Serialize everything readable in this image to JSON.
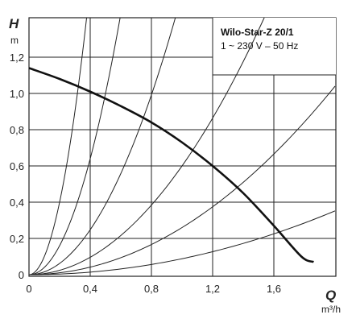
{
  "chart_data": {
    "type": "line",
    "title": "Wilo-Star-Z 20/1",
    "subtitle": "1 ~ 230 V – 50 Hz",
    "ylabel_symbol": "H",
    "ylabel_unit": "m",
    "xlabel_symbol": "Q",
    "xlabel_unit": "m³/h",
    "xlim": [
      0,
      2.0
    ],
    "ylim": [
      0,
      1.38
    ],
    "xticks": [
      "0",
      "0,4",
      "0,8",
      "1,2",
      "1,6"
    ],
    "xtick_values": [
      0,
      0.4,
      0.8,
      1.2,
      1.6
    ],
    "yticks": [
      "0",
      "0,2",
      "0,4",
      "0,6",
      "0,8",
      "1,0",
      "1,2"
    ],
    "ytick_values": [
      0,
      0.2,
      0.4,
      0.6,
      0.8,
      1.0,
      1.2
    ],
    "grid": true,
    "series": [
      {
        "role": "pump-curve",
        "points": [
          [
            0,
            1.14
          ],
          [
            0.2,
            1.08
          ],
          [
            0.4,
            1.01
          ],
          [
            0.6,
            0.93
          ],
          [
            0.8,
            0.84
          ],
          [
            1.0,
            0.73
          ],
          [
            1.2,
            0.6
          ],
          [
            1.4,
            0.45
          ],
          [
            1.6,
            0.27
          ],
          [
            1.78,
            0.1
          ],
          [
            1.86,
            0.07
          ]
        ]
      },
      {
        "role": "system-curve",
        "k": 10.0
      },
      {
        "role": "system-curve",
        "k": 4.0
      },
      {
        "role": "system-curve",
        "k": 1.55
      },
      {
        "role": "system-curve",
        "k": 0.6
      },
      {
        "role": "system-curve",
        "k": 0.26
      },
      {
        "role": "system-curve",
        "k": 0.088
      }
    ]
  }
}
